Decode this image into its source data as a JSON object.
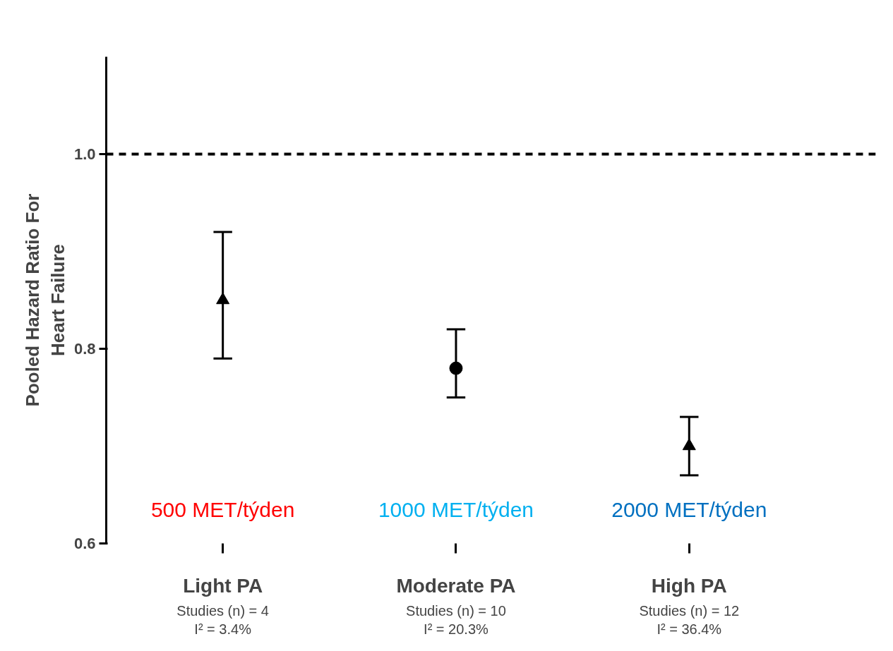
{
  "chart_data": {
    "type": "scatter",
    "ylabel": "Pooled Hazard Ratio For\nHeart Failure",
    "categories": [
      "Light PA",
      "Moderate PA",
      "High PA"
    ],
    "ylim": [
      0.6,
      1.1
    ],
    "yticks": [
      0.6,
      0.8,
      {
        "value": 1.0,
        "label": "1.0"
      }
    ],
    "grid": false,
    "series": [
      {
        "color": "#000000",
        "marker": "triangle",
        "values": [
          0.85,
          null,
          null
        ],
        "errors": [
          [
            0.79,
            0.92
          ],
          null,
          null
        ]
      },
      {
        "color": "#000000",
        "marker": "circle",
        "values": [
          null,
          0.78,
          null
        ],
        "errors": [
          null,
          [
            0.75,
            0.82
          ],
          null
        ]
      },
      {
        "color": "#000000",
        "marker": "triangle",
        "values": [
          null,
          null,
          0.7
        ],
        "errors": [
          null,
          null,
          [
            0.67,
            0.73
          ]
        ]
      }
    ],
    "ref_lines": [
      {
        "axis": "y",
        "value": 1.0,
        "label": null,
        "color": "#000000",
        "line_style": "dashed"
      }
    ],
    "annotations": [
      "Studies (n) = 4\nI² = 3.4%",
      "Studies (n) = 10\nI² = 20.3%",
      "Studies (n) = 12\nI² = 36.4%",
      "500 MET/týden",
      "1000 MET/týden",
      "2000 MET/týden"
    ]
  }
}
